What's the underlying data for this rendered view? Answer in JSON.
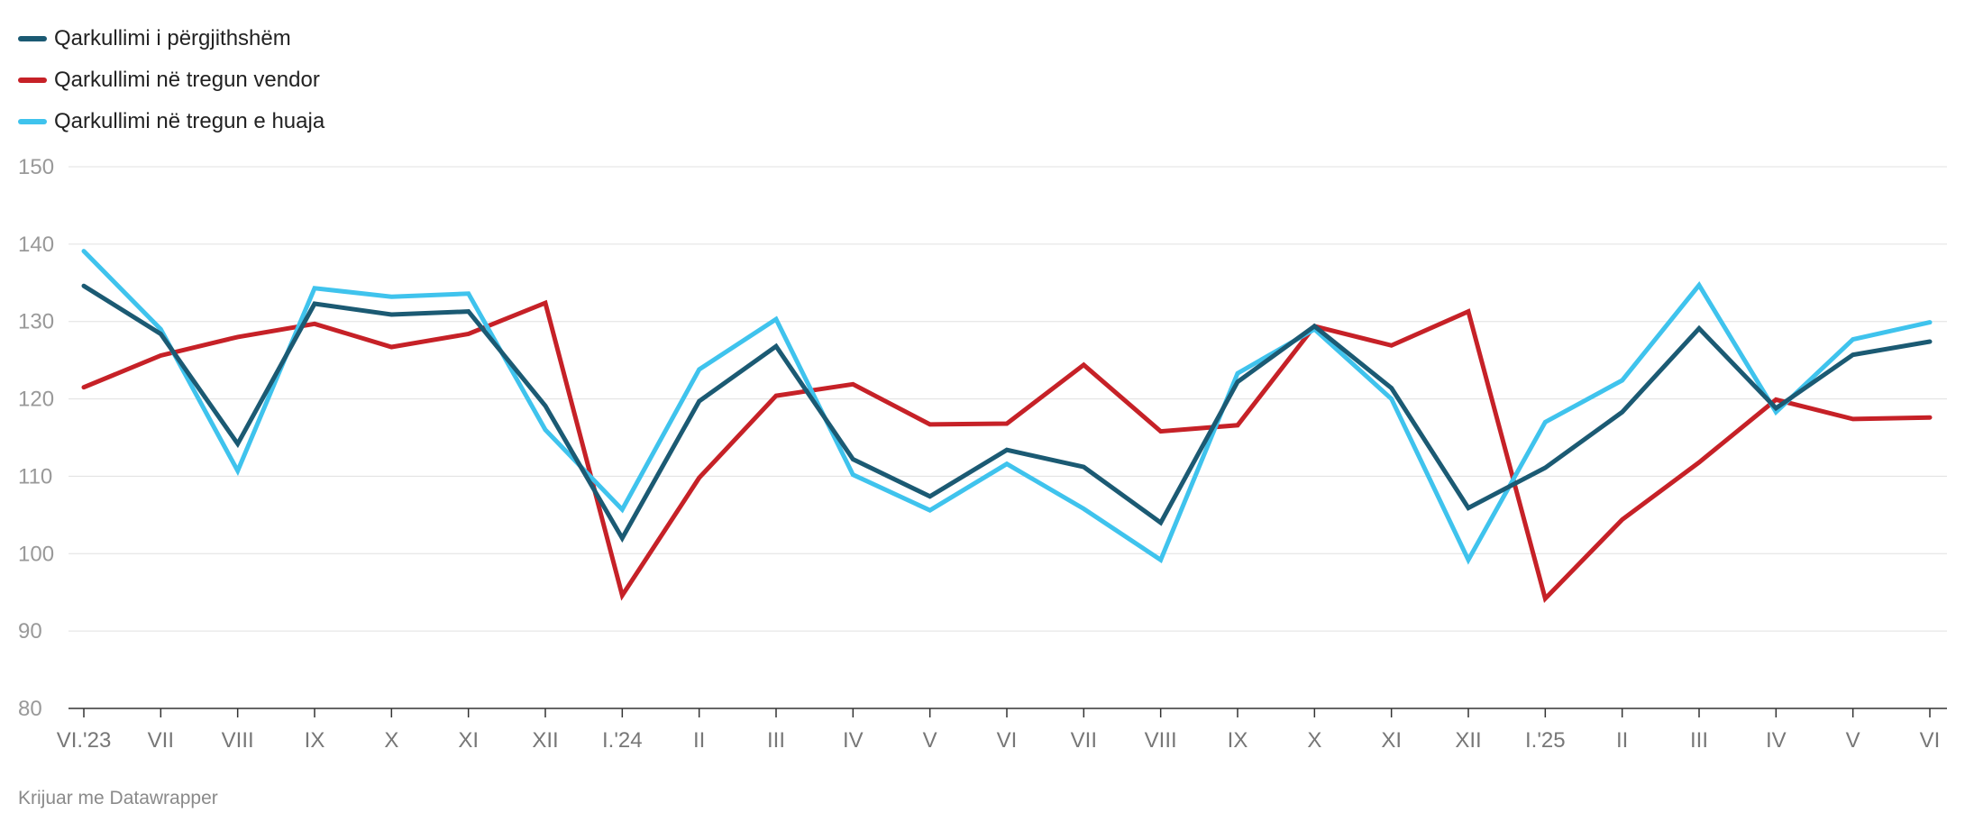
{
  "colors": {
    "total": "#1b5a73",
    "domestic": "#c62127",
    "foreign": "#3fc3ed",
    "grid": "#e0e0e0",
    "tick_text": "#999999",
    "x_tick_text": "#777777"
  },
  "footer": "Krijuar me Datawrapper",
  "chart_data": {
    "type": "line",
    "categories": [
      "VI.'23",
      "VII",
      "VIII",
      "IX",
      "X",
      "XI",
      "XII",
      "I.'24",
      "II",
      "III",
      "IV",
      "V",
      "VI",
      "VII",
      "VIII",
      "IX",
      "X",
      "XI",
      "XII",
      "I.'25",
      "II",
      "III",
      "IV",
      "V",
      "VI"
    ],
    "ylim": [
      80,
      150
    ],
    "yticks": [
      80,
      90,
      100,
      110,
      120,
      130,
      140,
      150
    ],
    "grid": true,
    "legend_position": "top-left",
    "series": [
      {
        "name": "Qarkullimi i përgjithshëm",
        "color_key": "total",
        "values": [
          134.6,
          128.4,
          114.2,
          132.3,
          130.9,
          131.3,
          119.1,
          102.0,
          119.7,
          126.8,
          112.2,
          107.4,
          113.4,
          111.2,
          104.0,
          122.2,
          129.4,
          121.4,
          105.9,
          111.1,
          118.3,
          129.1,
          118.8,
          125.7,
          127.4
        ]
      },
      {
        "name": "Qarkullimi në tregun vendor",
        "color_key": "domestic",
        "values": [
          121.5,
          125.6,
          128.0,
          129.7,
          126.7,
          128.4,
          132.4,
          94.6,
          109.8,
          120.4,
          121.9,
          116.7,
          116.8,
          124.4,
          115.8,
          116.6,
          129.4,
          126.9,
          131.3,
          94.2,
          104.4,
          111.8,
          119.9,
          117.4,
          117.6
        ]
      },
      {
        "name": "Qarkullimi në tregun e huaja",
        "color_key": "foreign",
        "values": [
          139.1,
          129.0,
          110.7,
          134.3,
          133.2,
          133.6,
          116.0,
          105.7,
          123.8,
          130.3,
          110.2,
          105.6,
          111.6,
          105.8,
          99.2,
          123.3,
          129.0,
          120.0,
          99.2,
          117.0,
          122.4,
          134.7,
          118.3,
          127.7,
          129.9
        ]
      }
    ]
  }
}
